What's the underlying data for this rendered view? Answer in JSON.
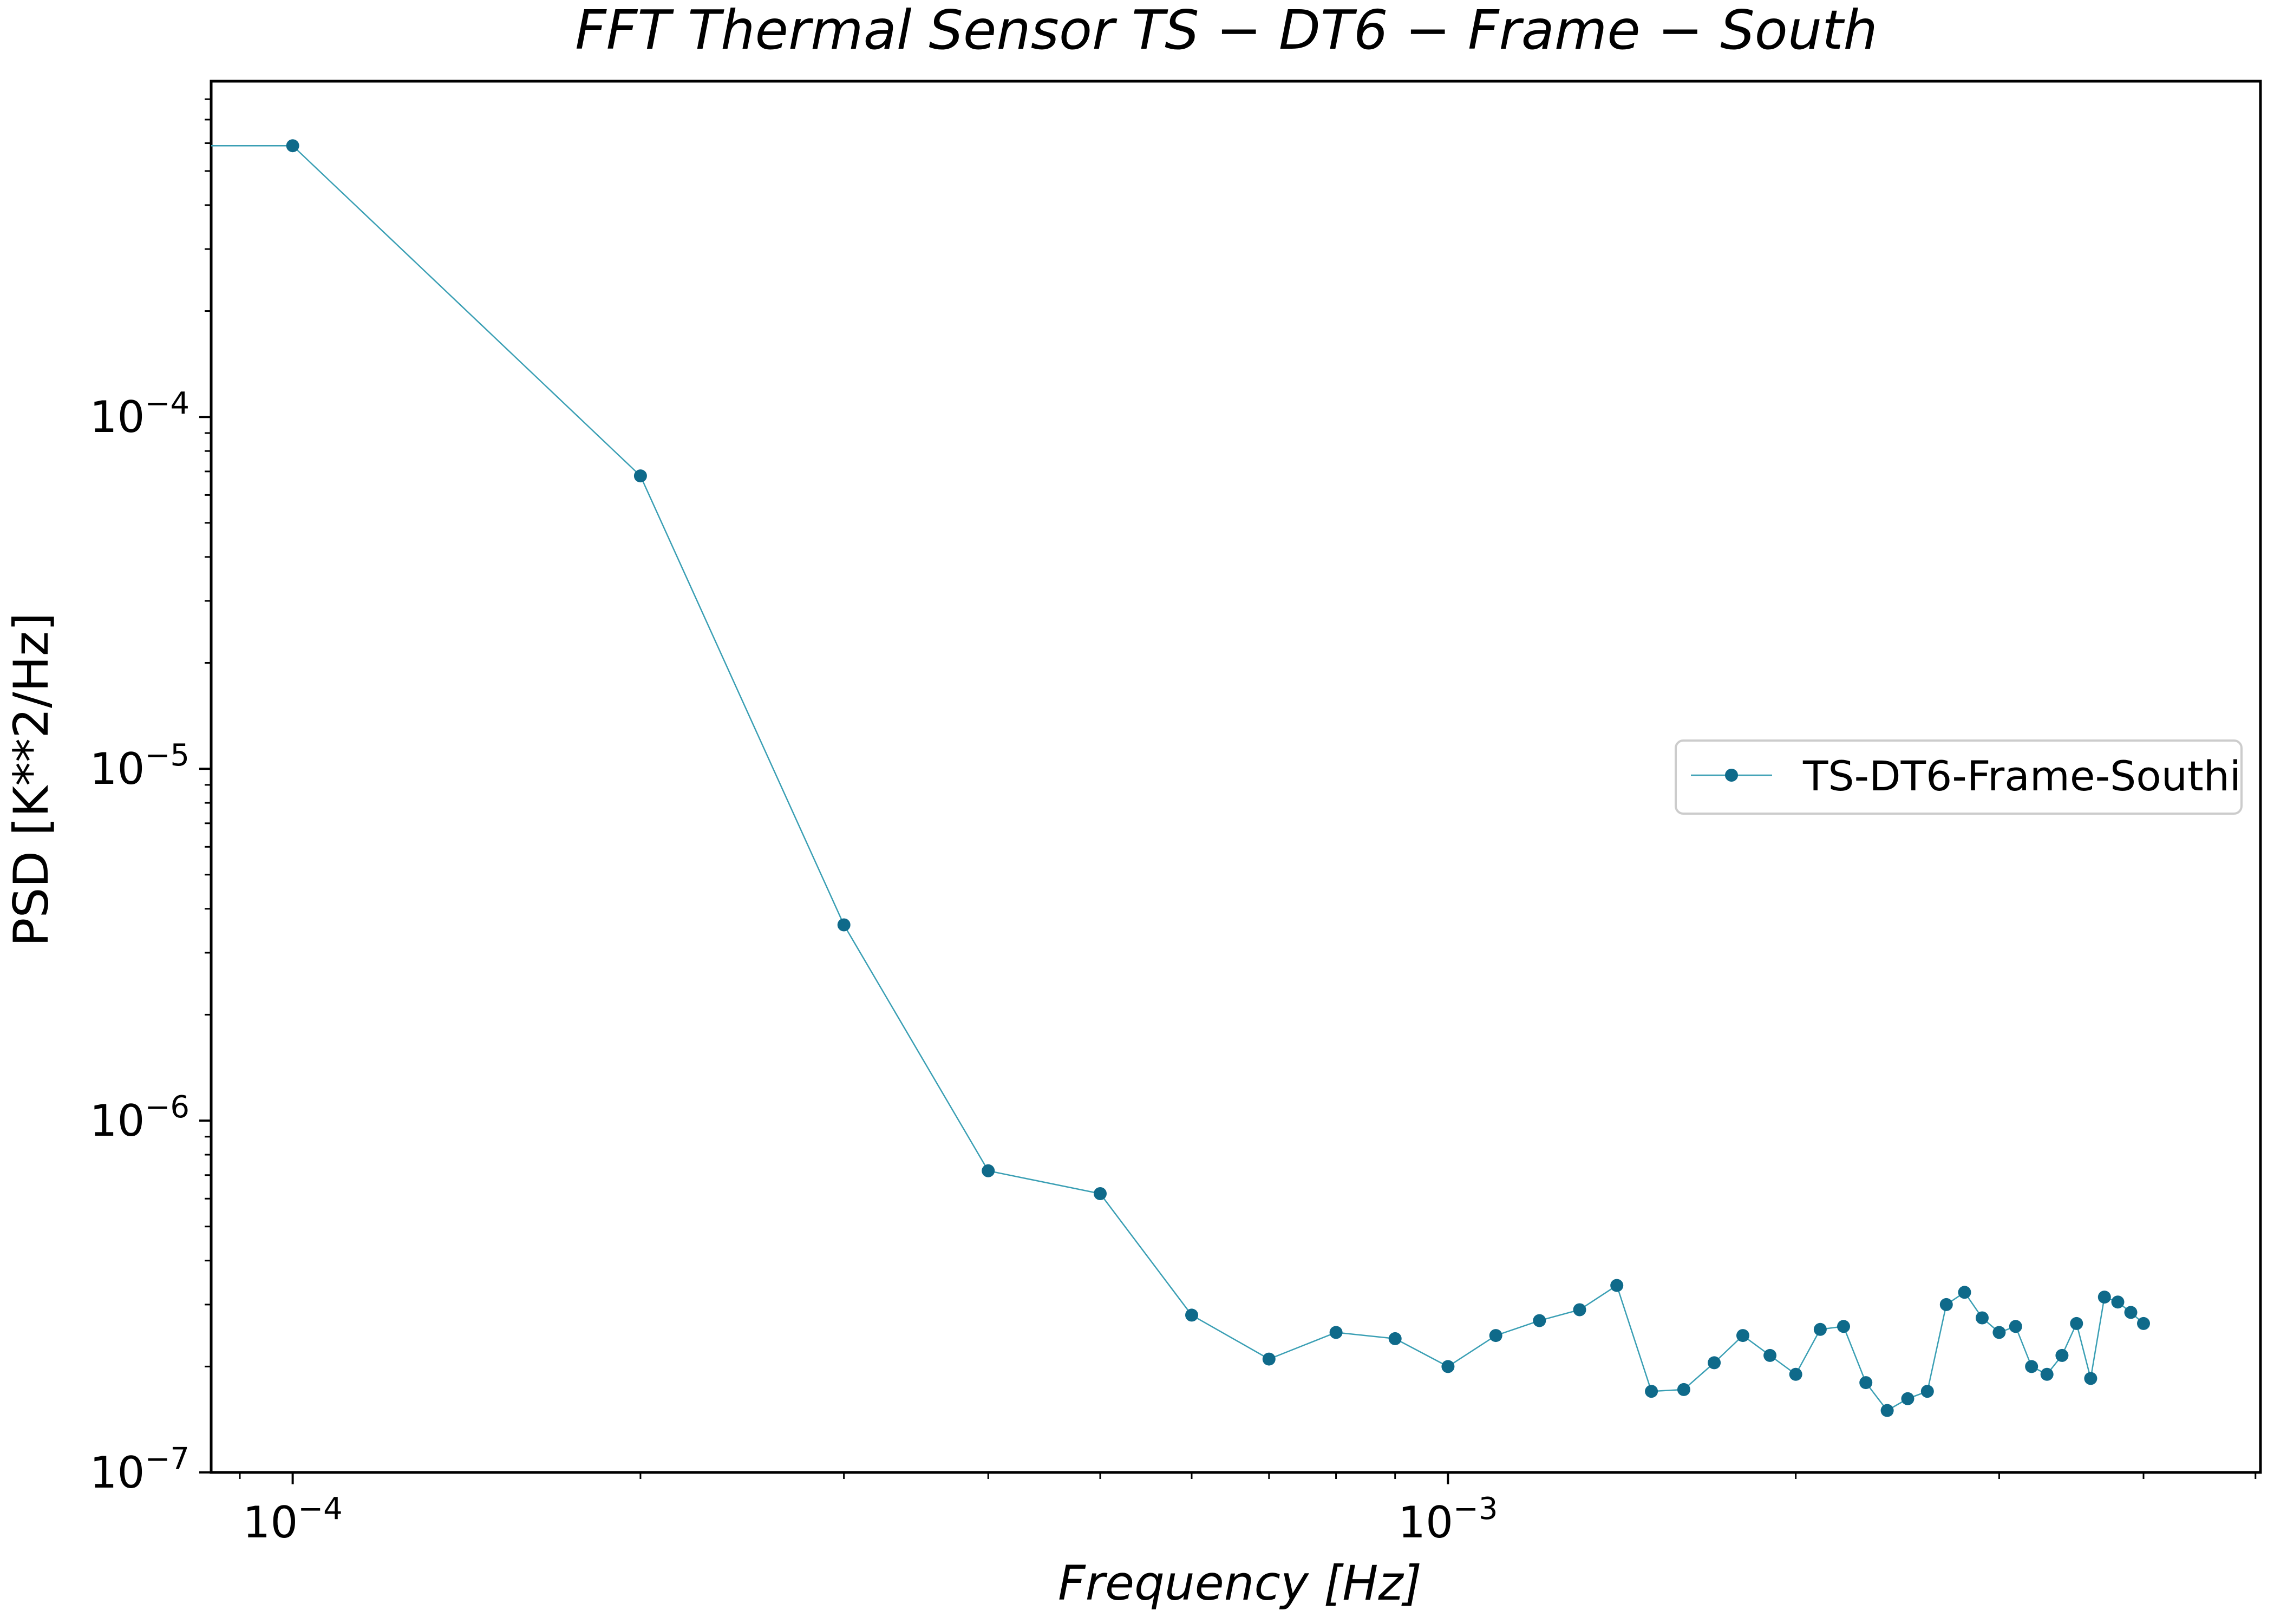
{
  "chart_data": {
    "type": "line",
    "title": "FFT Thermal Sensor TS − DT6 − Frame − South",
    "xlabel": "Frequency [Hz]",
    "ylabel": "PSD [K**2/Hz]",
    "x_scale": "log",
    "y_scale": "log",
    "xlim": [
      8.5e-05,
      0.00505
    ],
    "ylim": [
      1e-07,
      0.0009
    ],
    "x_ticks": [
      {
        "value": 0.0001,
        "base": "10",
        "exp": "−4"
      },
      {
        "value": 0.001,
        "base": "10",
        "exp": "−3"
      }
    ],
    "y_ticks": [
      {
        "value": 1e-07,
        "base": "10",
        "exp": "−7"
      },
      {
        "value": 1e-06,
        "base": "10",
        "exp": "−6"
      },
      {
        "value": 1e-05,
        "base": "10",
        "exp": "−5"
      },
      {
        "value": 0.0001,
        "base": "10",
        "exp": "−4"
      }
    ],
    "grid": false,
    "legend_position": "center-right",
    "series": [
      {
        "name": "TS-DT6-Frame-Southi",
        "color": "#3a9fb4",
        "marker_color": "#0f6a8a",
        "x": [
          0,
          0.0001,
          0.0002,
          0.0003,
          0.0004,
          0.0005,
          0.0006,
          0.0007,
          0.0008,
          0.0009,
          0.001,
          0.0011,
          0.0012,
          0.0013,
          0.0014,
          0.0015,
          0.0016,
          0.0017,
          0.0018,
          0.0019,
          0.002,
          0.0021,
          0.0022,
          0.0023,
          0.0024,
          0.0025,
          0.0026,
          0.0027,
          0.0028,
          0.0029,
          0.003,
          0.0031,
          0.0032,
          0.0033,
          0.0034,
          0.0035,
          0.0036,
          0.0037,
          0.0038,
          0.0039,
          0.004
        ],
        "y": [
          0.00059,
          0.00059,
          6.8e-05,
          3.6e-06,
          7.2e-07,
          6.2e-07,
          2.8e-07,
          2.1e-07,
          2.5e-07,
          2.4e-07,
          2e-07,
          2.45e-07,
          2.7e-07,
          2.9e-07,
          3.4e-07,
          1.7e-07,
          1.72e-07,
          2.05e-07,
          2.45e-07,
          2.15e-07,
          1.9e-07,
          2.55e-07,
          2.6e-07,
          1.8e-07,
          1.5e-07,
          1.62e-07,
          1.7e-07,
          3e-07,
          3.25e-07,
          2.75e-07,
          2.5e-07,
          2.6e-07,
          2e-07,
          1.9e-07,
          2.15e-07,
          2.65e-07,
          1.85e-07,
          3.15e-07,
          3.05e-07,
          2.85e-07,
          2.65e-07
        ]
      }
    ]
  }
}
